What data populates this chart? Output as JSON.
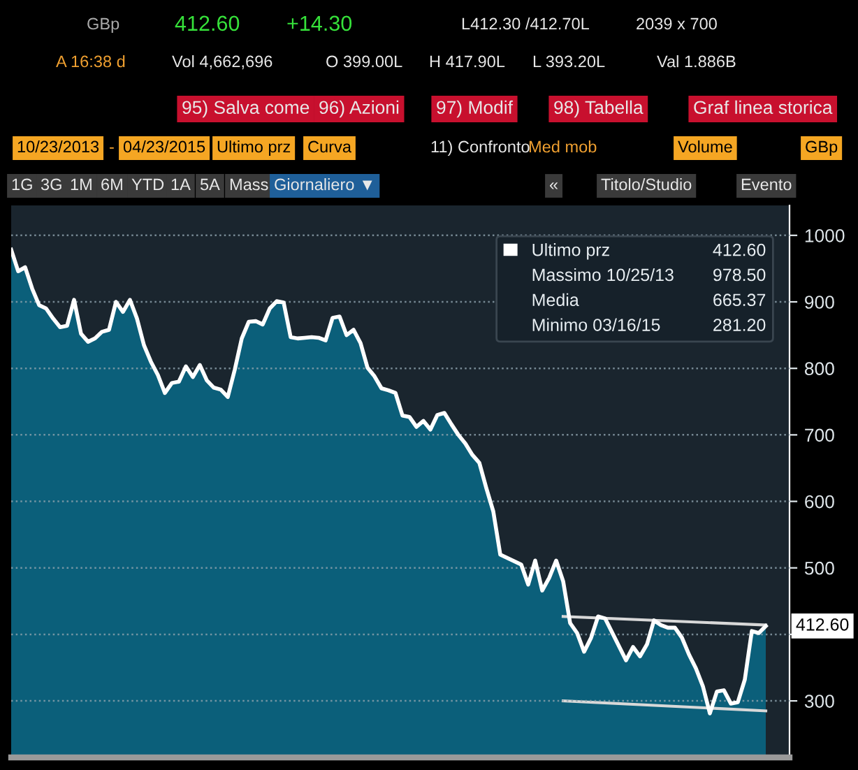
{
  "chart_data": {
    "type": "area",
    "ylim": [
      215,
      1045
    ],
    "categories": [
      null,
      null,
      null,
      null,
      null,
      null,
      null,
      null,
      null,
      null,
      null,
      null,
      null,
      null,
      null,
      null,
      null,
      null,
      null,
      null,
      null,
      null,
      null,
      null,
      null,
      null,
      null,
      null,
      null,
      null,
      null,
      null,
      null,
      null,
      null,
      null,
      null,
      null,
      null,
      null,
      null,
      null,
      null,
      null,
      null,
      null,
      null,
      null,
      null,
      null,
      null,
      null,
      null,
      null,
      null,
      null,
      null,
      null,
      null,
      null,
      null,
      null,
      null,
      null,
      null,
      null,
      null,
      null,
      null,
      null,
      null,
      null,
      null,
      null,
      null,
      null,
      null,
      null,
      null,
      null,
      null,
      null,
      null,
      null,
      null,
      null,
      null,
      null,
      null,
      null,
      null,
      null,
      null,
      null,
      null,
      null,
      null,
      null,
      null,
      null,
      null,
      null,
      null,
      null,
      null,
      null,
      null,
      null,
      null
    ],
    "yticks": [
      300,
      {
        "value": 400,
        "label": null
      },
      500,
      600,
      700,
      800,
      900,
      1000
    ],
    "grid": "y",
    "legend": "top right",
    "series": [
      {
        "name": "Ultimo prz",
        "color": "#ffffff",
        "values": [
          978.5,
          946,
          952,
          920,
          895,
          890,
          875,
          862,
          864,
          903,
          852,
          840,
          845,
          855,
          858,
          900,
          885,
          903,
          875,
          835,
          810,
          790,
          763,
          778,
          780,
          803,
          787,
          805,
          782,
          771,
          768,
          757,
          798,
          845,
          870,
          871,
          866,
          890,
          901,
          899,
          847,
          845,
          846,
          847,
          846,
          842,
          876,
          878,
          850,
          858,
          838,
          801,
          788,
          770,
          767,
          763,
          729,
          727,
          712,
          721,
          708,
          730,
          733,
          716,
          700,
          687,
          670,
          658,
          620,
          585,
          520,
          515,
          510,
          505,
          475,
          511,
          466,
          485,
          511,
          480,
          417,
          402,
          374,
          395,
          427,
          424,
          403,
          382,
          361,
          381,
          367,
          385,
          421,
          414,
          410,
          410,
          395,
          370,
          349,
          322,
          281.2,
          314,
          316,
          296,
          298,
          332,
          405,
          402,
          412.6
        ]
      },
      {
        "type": "line",
        "color": "#d8d8d8",
        "values": [
          null,
          null,
          null,
          null,
          null,
          null,
          null,
          null,
          null,
          null,
          null,
          null,
          null,
          null,
          null,
          null,
          null,
          null,
          null,
          null,
          null,
          null,
          null,
          null,
          null,
          null,
          null,
          null,
          null,
          null,
          null,
          null,
          null,
          null,
          null,
          null,
          null,
          null,
          null,
          null,
          null,
          null,
          null,
          null,
          null,
          null,
          null,
          null,
          null,
          null,
          null,
          null,
          null,
          null,
          null,
          null,
          null,
          null,
          null,
          null,
          null,
          null,
          null,
          null,
          null,
          null,
          null,
          null,
          null,
          null,
          null,
          null,
          null,
          null,
          null,
          null,
          null,
          null,
          null,
          427,
          null,
          null,
          null,
          null,
          null,
          null,
          null,
          null,
          null,
          null,
          null,
          null,
          null,
          null,
          null,
          null,
          null,
          null,
          null,
          null,
          null,
          null,
          null,
          null,
          null,
          null,
          null,
          null,
          414
        ]
      },
      {
        "type": "line",
        "color": "#d8d8d8",
        "values": [
          null,
          null,
          null,
          null,
          null,
          null,
          null,
          null,
          null,
          null,
          null,
          null,
          null,
          null,
          null,
          null,
          null,
          null,
          null,
          null,
          null,
          null,
          null,
          null,
          null,
          null,
          null,
          null,
          null,
          null,
          null,
          null,
          null,
          null,
          null,
          null,
          null,
          null,
          null,
          null,
          null,
          null,
          null,
          null,
          null,
          null,
          null,
          null,
          null,
          null,
          null,
          null,
          null,
          null,
          null,
          null,
          null,
          null,
          null,
          null,
          null,
          null,
          null,
          null,
          null,
          null,
          null,
          null,
          null,
          null,
          null,
          null,
          null,
          null,
          null,
          null,
          null,
          null,
          null,
          300,
          null,
          null,
          null,
          null,
          null,
          null,
          null,
          null,
          null,
          null,
          null,
          null,
          null,
          null,
          null,
          null,
          null,
          null,
          null,
          null,
          null,
          null,
          null,
          null,
          null,
          null,
          null,
          null,
          285
        ]
      }
    ],
    "annotations": [
      "GBp",
      "412.60",
      "+14.30",
      "L412.30 /412.70L",
      "2039 x 700",
      "A 16:38 d",
      "Vol 4,662,696",
      "O 399.00L",
      "H 417.90L",
      "L 393.20L",
      "Val 1.886B",
      "95) Salva come",
      "96) Azioni",
      "97) Modif",
      "98) Tabella",
      "Graf linea storica",
      "10/23/2013",
      "-",
      "04/23/2015",
      "Ultimo prz",
      "Curva",
      "11) Confronto",
      "Med mob",
      "Volume",
      "GBp",
      "1G",
      "3G",
      "1M",
      "6M",
      "YTD",
      "1A",
      "5A",
      "Mass",
      "Giornaliero ▼",
      "«",
      "Titolo/Studio",
      "Evento",
      "Massimo 10/25/13",
      "Media",
      "Minimo 03/16/15",
      "412.60",
      "978.50",
      "665.37",
      "281.20",
      {
        "text": "412.60"
      }
    ]
  }
}
